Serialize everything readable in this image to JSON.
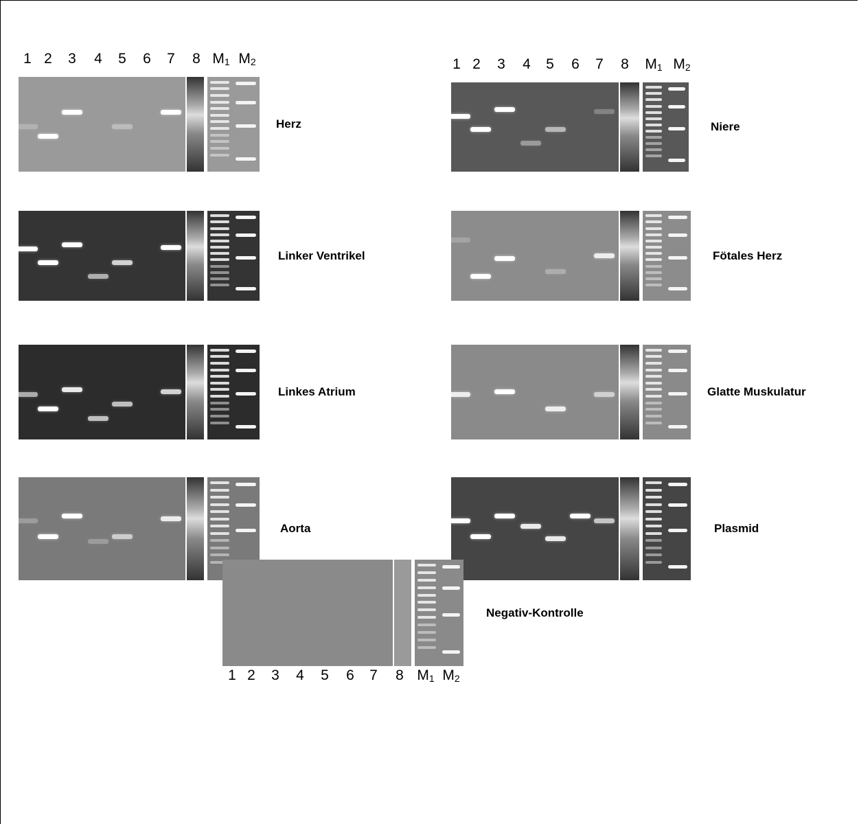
{
  "lane_labels": [
    "1",
    "2",
    "3",
    "4",
    "5",
    "6",
    "7",
    "8",
    {
      "base": "M",
      "sub": "1"
    },
    {
      "base": "M",
      "sub": "2"
    }
  ],
  "panels": [
    {
      "label": "Herz"
    },
    {
      "label": "Linker Ventrikel"
    },
    {
      "label": "Linkes Atrium"
    },
    {
      "label": "Aorta"
    },
    {
      "label": "Niere"
    },
    {
      "label": "Fötales Herz"
    },
    {
      "label": "Glatte Muskulatur"
    },
    {
      "label": "Plasmid"
    },
    {
      "label": "Negativ-Kontrolle"
    }
  ]
}
